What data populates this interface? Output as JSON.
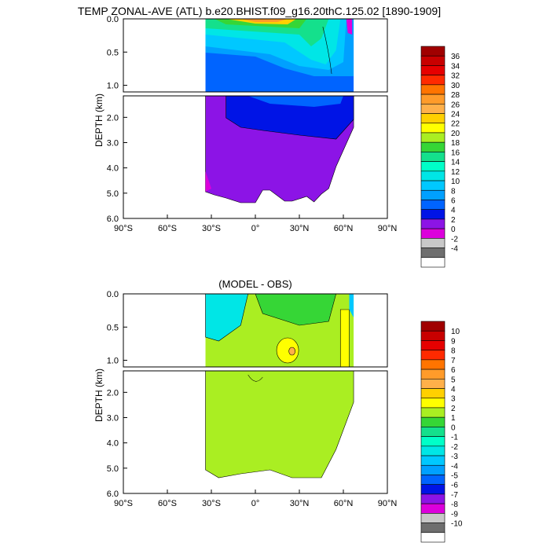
{
  "title": "TEMP ZONAL-AVE (ATL) b.e20.BHIST.f09_g16.20thC.125.02 [1890-1909]",
  "chart_data": [
    {
      "type": "heatmap",
      "title": "",
      "ylabel": "DEPTH (km)",
      "xlabel": "",
      "xlim": [
        -90,
        90
      ],
      "ylim": [
        6.0,
        0.0
      ],
      "xticks": [
        "90°S",
        "60°S",
        "30°S",
        "0°",
        "30°N",
        "60°N",
        "90°N"
      ],
      "yticks_upper": [
        "0.0",
        "0.5",
        "1.0"
      ],
      "yticks_lower": [
        "2.0",
        "3.0",
        "4.0",
        "5.0",
        "6.0"
      ],
      "colorbar_labels": [
        "36",
        "34",
        "32",
        "30",
        "28",
        "26",
        "24",
        "22",
        "20",
        "18",
        "16",
        "14",
        "12",
        "10",
        "8",
        "6",
        "4",
        "2",
        "0",
        "-2",
        "-4"
      ],
      "colorbar_colors": [
        "#a00000",
        "#c80000",
        "#e60000",
        "#ff2a00",
        "#ff7400",
        "#ff9b2a",
        "#ffb04a",
        "#ffd000",
        "#ffff00",
        "#aaee22",
        "#36d636",
        "#14e08c",
        "#00ffc8",
        "#00e6e6",
        "#00c8ff",
        "#00a0ff",
        "#0064ff",
        "#0014e6",
        "#8c14e6",
        "#dc00dc",
        "#c8c8c8",
        "#6e6e6e",
        "#ffffff"
      ]
    },
    {
      "type": "heatmap",
      "title": "(MODEL - OBS)",
      "ylabel": "DEPTH (km)",
      "xlabel": "",
      "xlim": [
        -90,
        90
      ],
      "ylim": [
        6.0,
        0.0
      ],
      "xticks": [
        "90°S",
        "60°S",
        "30°S",
        "0°",
        "30°N",
        "60°N",
        "90°N"
      ],
      "yticks_upper": [
        "0.0",
        "0.5",
        "1.0"
      ],
      "yticks_lower": [
        "2.0",
        "3.0",
        "4.0",
        "5.0",
        "6.0"
      ],
      "colorbar_labels": [
        "10",
        "9",
        "8",
        "7",
        "6",
        "5",
        "4",
        "3",
        "2",
        "1",
        "0",
        "-1",
        "-2",
        "-3",
        "-4",
        "-5",
        "-6",
        "-7",
        "-8",
        "-9",
        "-10"
      ],
      "colorbar_colors": [
        "#a00000",
        "#c80000",
        "#e60000",
        "#ff2a00",
        "#ff7400",
        "#ff9b2a",
        "#ffb04a",
        "#ffd000",
        "#ffff00",
        "#aaee22",
        "#36d636",
        "#14e08c",
        "#00ffc8",
        "#00e6e6",
        "#00c8ff",
        "#00a0ff",
        "#0064ff",
        "#0014e6",
        "#8c14e6",
        "#dc00dc",
        "#c8c8c8",
        "#6e6e6e",
        "#ffffff"
      ]
    }
  ]
}
